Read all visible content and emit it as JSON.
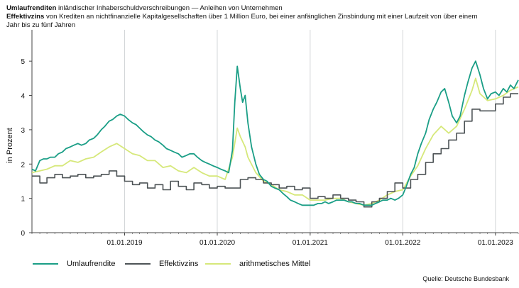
{
  "header": {
    "line1_bold": "Umlaufrenditen",
    "line1_rest": " inländischer Inhaberschuldverschreibungen — Anleihen von Unternehmen",
    "line2_bold": "Effektivzins",
    "line2_rest": " von Krediten an nichtfinanzielle Kapitalgesellschaften über 1 Million Euro, bei einer anfänglichen Zinsbindung mit einer Laufzeit von über einem",
    "line3": "Jahr bis zu fünf Jahren"
  },
  "source": "Quelle: Deutsche Bundesbank",
  "colors": {
    "umlauf": "#1a9e86",
    "effektiv": "#4d5356",
    "mittel": "#d6e87a",
    "grid": "#d3d6d8",
    "axis": "#444444"
  },
  "chart_data": {
    "type": "line",
    "ylabel": "in Prozent",
    "xlabel": "",
    "ylim": [
      0,
      5.5
    ],
    "xlim": [
      "2018-01-01",
      "2023-04-01"
    ],
    "yticks": [
      0,
      1,
      2,
      3,
      4,
      5
    ],
    "xticks": [
      "2019-01-01",
      "2020-01-01",
      "2021-01-01",
      "2022-01-01",
      "2023-01-01"
    ],
    "xtick_labels": [
      "01.01.2019",
      "01.01.2020",
      "01.01.2021",
      "01.01.2022",
      "01.01.2023"
    ],
    "grid": "vertical",
    "legend_position": "bottom-left",
    "series": [
      {
        "name": "Umlaufrendite",
        "key": "umlauf",
        "style": "line",
        "points": [
          [
            "2018-01-01",
            1.85
          ],
          [
            "2018-01-15",
            1.8
          ],
          [
            "2018-02-01",
            2.1
          ],
          [
            "2018-02-15",
            2.15
          ],
          [
            "2018-03-01",
            2.15
          ],
          [
            "2018-03-15",
            2.2
          ],
          [
            "2018-04-01",
            2.2
          ],
          [
            "2018-04-15",
            2.3
          ],
          [
            "2018-05-01",
            2.35
          ],
          [
            "2018-05-15",
            2.45
          ],
          [
            "2018-06-01",
            2.5
          ],
          [
            "2018-06-15",
            2.55
          ],
          [
            "2018-07-01",
            2.6
          ],
          [
            "2018-07-15",
            2.55
          ],
          [
            "2018-08-01",
            2.6
          ],
          [
            "2018-08-15",
            2.7
          ],
          [
            "2018-09-01",
            2.75
          ],
          [
            "2018-09-15",
            2.85
          ],
          [
            "2018-10-01",
            3.0
          ],
          [
            "2018-10-15",
            3.1
          ],
          [
            "2018-11-01",
            3.25
          ],
          [
            "2018-11-15",
            3.3
          ],
          [
            "2018-12-01",
            3.4
          ],
          [
            "2018-12-15",
            3.45
          ],
          [
            "2019-01-01",
            3.4
          ],
          [
            "2019-01-15",
            3.3
          ],
          [
            "2019-02-01",
            3.2
          ],
          [
            "2019-02-15",
            3.15
          ],
          [
            "2019-03-01",
            3.05
          ],
          [
            "2019-03-15",
            2.95
          ],
          [
            "2019-04-01",
            2.85
          ],
          [
            "2019-04-15",
            2.8
          ],
          [
            "2019-05-01",
            2.7
          ],
          [
            "2019-05-15",
            2.65
          ],
          [
            "2019-06-01",
            2.55
          ],
          [
            "2019-06-15",
            2.45
          ],
          [
            "2019-07-01",
            2.4
          ],
          [
            "2019-07-15",
            2.35
          ],
          [
            "2019-08-01",
            2.3
          ],
          [
            "2019-08-15",
            2.2
          ],
          [
            "2019-09-01",
            2.25
          ],
          [
            "2019-09-15",
            2.3
          ],
          [
            "2019-10-01",
            2.3
          ],
          [
            "2019-10-15",
            2.2
          ],
          [
            "2019-11-01",
            2.1
          ],
          [
            "2019-11-15",
            2.05
          ],
          [
            "2019-12-01",
            2.0
          ],
          [
            "2019-12-15",
            1.95
          ],
          [
            "2020-01-01",
            1.9
          ],
          [
            "2020-01-15",
            1.85
          ],
          [
            "2020-02-01",
            1.8
          ],
          [
            "2020-02-15",
            1.75
          ],
          [
            "2020-03-01",
            2.4
          ],
          [
            "2020-03-10",
            3.8
          ],
          [
            "2020-03-20",
            4.85
          ],
          [
            "2020-04-01",
            4.2
          ],
          [
            "2020-04-10",
            3.8
          ],
          [
            "2020-04-20",
            4.0
          ],
          [
            "2020-05-01",
            3.2
          ],
          [
            "2020-05-15",
            2.5
          ],
          [
            "2020-06-01",
            2.0
          ],
          [
            "2020-06-15",
            1.7
          ],
          [
            "2020-07-01",
            1.55
          ],
          [
            "2020-07-15",
            1.5
          ],
          [
            "2020-08-01",
            1.35
          ],
          [
            "2020-08-15",
            1.3
          ],
          [
            "2020-09-01",
            1.25
          ],
          [
            "2020-09-15",
            1.15
          ],
          [
            "2020-10-01",
            1.05
          ],
          [
            "2020-10-15",
            0.95
          ],
          [
            "2020-11-01",
            0.9
          ],
          [
            "2020-11-15",
            0.85
          ],
          [
            "2020-12-01",
            0.8
          ],
          [
            "2020-12-15",
            0.8
          ],
          [
            "2021-01-01",
            0.8
          ],
          [
            "2021-01-15",
            0.8
          ],
          [
            "2021-02-01",
            0.85
          ],
          [
            "2021-02-15",
            0.85
          ],
          [
            "2021-03-01",
            0.9
          ],
          [
            "2021-03-15",
            0.85
          ],
          [
            "2021-04-01",
            0.9
          ],
          [
            "2021-04-15",
            0.95
          ],
          [
            "2021-05-01",
            0.95
          ],
          [
            "2021-05-15",
            0.95
          ],
          [
            "2021-06-01",
            0.9
          ],
          [
            "2021-06-15",
            0.9
          ],
          [
            "2021-07-01",
            0.85
          ],
          [
            "2021-07-15",
            0.85
          ],
          [
            "2021-08-01",
            0.8
          ],
          [
            "2021-08-15",
            0.8
          ],
          [
            "2021-09-01",
            0.8
          ],
          [
            "2021-09-15",
            0.85
          ],
          [
            "2021-10-01",
            0.9
          ],
          [
            "2021-10-15",
            0.95
          ],
          [
            "2021-11-01",
            0.95
          ],
          [
            "2021-11-15",
            1.0
          ],
          [
            "2021-12-01",
            0.95
          ],
          [
            "2021-12-15",
            1.0
          ],
          [
            "2022-01-01",
            1.1
          ],
          [
            "2022-01-15",
            1.35
          ],
          [
            "2022-02-01",
            1.7
          ],
          [
            "2022-02-15",
            1.9
          ],
          [
            "2022-03-01",
            2.3
          ],
          [
            "2022-03-15",
            2.6
          ],
          [
            "2022-04-01",
            2.9
          ],
          [
            "2022-04-15",
            3.3
          ],
          [
            "2022-05-01",
            3.6
          ],
          [
            "2022-05-15",
            3.8
          ],
          [
            "2022-06-01",
            4.1
          ],
          [
            "2022-06-15",
            4.2
          ],
          [
            "2022-07-01",
            3.8
          ],
          [
            "2022-07-15",
            3.4
          ],
          [
            "2022-08-01",
            3.2
          ],
          [
            "2022-08-15",
            3.4
          ],
          [
            "2022-09-01",
            4.0
          ],
          [
            "2022-09-15",
            4.4
          ],
          [
            "2022-10-01",
            4.8
          ],
          [
            "2022-10-15",
            5.0
          ],
          [
            "2022-11-01",
            4.6
          ],
          [
            "2022-11-15",
            4.2
          ],
          [
            "2022-12-01",
            3.9
          ],
          [
            "2022-12-15",
            4.05
          ],
          [
            "2023-01-01",
            4.1
          ],
          [
            "2023-01-15",
            4.0
          ],
          [
            "2023-02-01",
            4.2
          ],
          [
            "2023-02-15",
            4.1
          ],
          [
            "2023-03-01",
            4.3
          ],
          [
            "2023-03-15",
            4.2
          ],
          [
            "2023-04-01",
            4.45
          ]
        ]
      },
      {
        "name": "Effektivzins",
        "key": "effektiv",
        "style": "step",
        "points": [
          [
            "2018-01-01",
            1.65
          ],
          [
            "2018-02-01",
            1.45
          ],
          [
            "2018-03-01",
            1.6
          ],
          [
            "2018-04-01",
            1.7
          ],
          [
            "2018-05-01",
            1.6
          ],
          [
            "2018-06-01",
            1.65
          ],
          [
            "2018-07-01",
            1.7
          ],
          [
            "2018-08-01",
            1.6
          ],
          [
            "2018-09-01",
            1.65
          ],
          [
            "2018-10-01",
            1.7
          ],
          [
            "2018-11-01",
            1.8
          ],
          [
            "2018-12-01",
            1.65
          ],
          [
            "2019-01-01",
            1.5
          ],
          [
            "2019-02-01",
            1.4
          ],
          [
            "2019-03-01",
            1.45
          ],
          [
            "2019-04-01",
            1.3
          ],
          [
            "2019-05-01",
            1.4
          ],
          [
            "2019-06-01",
            1.25
          ],
          [
            "2019-07-01",
            1.5
          ],
          [
            "2019-08-01",
            1.35
          ],
          [
            "2019-09-01",
            1.25
          ],
          [
            "2019-10-01",
            1.45
          ],
          [
            "2019-11-01",
            1.4
          ],
          [
            "2019-12-01",
            1.3
          ],
          [
            "2020-01-01",
            1.35
          ],
          [
            "2020-02-01",
            1.3
          ],
          [
            "2020-03-01",
            1.3
          ],
          [
            "2020-04-01",
            1.55
          ],
          [
            "2020-05-01",
            1.6
          ],
          [
            "2020-06-01",
            1.55
          ],
          [
            "2020-07-01",
            1.45
          ],
          [
            "2020-08-01",
            1.4
          ],
          [
            "2020-09-01",
            1.3
          ],
          [
            "2020-10-01",
            1.35
          ],
          [
            "2020-11-01",
            1.25
          ],
          [
            "2020-12-01",
            1.3
          ],
          [
            "2021-01-01",
            1.0
          ],
          [
            "2021-02-01",
            1.05
          ],
          [
            "2021-03-01",
            1.0
          ],
          [
            "2021-04-01",
            1.1
          ],
          [
            "2021-05-01",
            1.0
          ],
          [
            "2021-06-01",
            0.95
          ],
          [
            "2021-07-01",
            0.9
          ],
          [
            "2021-08-01",
            0.75
          ],
          [
            "2021-09-01",
            0.9
          ],
          [
            "2021-10-01",
            1.0
          ],
          [
            "2021-11-01",
            1.2
          ],
          [
            "2021-12-01",
            1.45
          ],
          [
            "2022-01-01",
            1.3
          ],
          [
            "2022-02-01",
            1.55
          ],
          [
            "2022-03-01",
            1.7
          ],
          [
            "2022-04-01",
            2.05
          ],
          [
            "2022-05-01",
            2.3
          ],
          [
            "2022-06-01",
            2.45
          ],
          [
            "2022-07-01",
            2.7
          ],
          [
            "2022-08-01",
            2.9
          ],
          [
            "2022-09-01",
            3.25
          ],
          [
            "2022-10-01",
            3.6
          ],
          [
            "2022-11-01",
            3.55
          ],
          [
            "2022-12-01",
            3.55
          ],
          [
            "2023-01-01",
            3.75
          ],
          [
            "2023-02-01",
            3.95
          ],
          [
            "2023-03-01",
            4.05
          ],
          [
            "2023-04-01",
            4.05
          ]
        ]
      },
      {
        "name": "arithmetisches Mittel",
        "key": "mittel",
        "style": "line",
        "points": [
          [
            "2018-01-01",
            1.75
          ],
          [
            "2018-02-01",
            1.8
          ],
          [
            "2018-03-01",
            1.85
          ],
          [
            "2018-04-01",
            1.95
          ],
          [
            "2018-05-01",
            1.95
          ],
          [
            "2018-06-01",
            2.1
          ],
          [
            "2018-07-01",
            2.05
          ],
          [
            "2018-08-01",
            2.15
          ],
          [
            "2018-09-01",
            2.2
          ],
          [
            "2018-10-01",
            2.35
          ],
          [
            "2018-11-01",
            2.5
          ],
          [
            "2018-12-01",
            2.6
          ],
          [
            "2019-01-01",
            2.45
          ],
          [
            "2019-02-01",
            2.3
          ],
          [
            "2019-03-01",
            2.25
          ],
          [
            "2019-04-01",
            2.1
          ],
          [
            "2019-05-01",
            2.1
          ],
          [
            "2019-06-01",
            1.9
          ],
          [
            "2019-07-01",
            1.95
          ],
          [
            "2019-08-01",
            1.8
          ],
          [
            "2019-09-01",
            1.75
          ],
          [
            "2019-10-01",
            1.9
          ],
          [
            "2019-11-01",
            1.75
          ],
          [
            "2019-12-01",
            1.65
          ],
          [
            "2020-01-01",
            1.65
          ],
          [
            "2020-02-01",
            1.55
          ],
          [
            "2020-03-01",
            2.2
          ],
          [
            "2020-03-20",
            3.05
          ],
          [
            "2020-04-01",
            2.8
          ],
          [
            "2020-04-20",
            2.5
          ],
          [
            "2020-05-01",
            2.2
          ],
          [
            "2020-06-01",
            1.75
          ],
          [
            "2020-07-01",
            1.5
          ],
          [
            "2020-08-01",
            1.4
          ],
          [
            "2020-09-01",
            1.25
          ],
          [
            "2020-10-01",
            1.2
          ],
          [
            "2020-11-01",
            1.1
          ],
          [
            "2020-12-01",
            1.1
          ],
          [
            "2021-01-01",
            0.95
          ],
          [
            "2021-02-01",
            0.95
          ],
          [
            "2021-03-01",
            0.95
          ],
          [
            "2021-04-01",
            1.0
          ],
          [
            "2021-05-01",
            1.0
          ],
          [
            "2021-06-01",
            0.9
          ],
          [
            "2021-07-01",
            0.85
          ],
          [
            "2021-08-01",
            0.8
          ],
          [
            "2021-09-01",
            0.85
          ],
          [
            "2021-10-01",
            0.95
          ],
          [
            "2021-11-01",
            1.1
          ],
          [
            "2021-12-01",
            1.2
          ],
          [
            "2022-01-01",
            1.25
          ],
          [
            "2022-02-01",
            1.65
          ],
          [
            "2022-03-01",
            1.95
          ],
          [
            "2022-04-01",
            2.45
          ],
          [
            "2022-05-01",
            2.85
          ],
          [
            "2022-06-01",
            3.1
          ],
          [
            "2022-07-01",
            2.9
          ],
          [
            "2022-08-01",
            3.1
          ],
          [
            "2022-09-01",
            3.6
          ],
          [
            "2022-10-01",
            4.15
          ],
          [
            "2022-10-15",
            4.5
          ],
          [
            "2022-11-01",
            4.05
          ],
          [
            "2022-12-01",
            3.85
          ],
          [
            "2023-01-01",
            3.9
          ],
          [
            "2023-02-01",
            4.0
          ],
          [
            "2023-03-01",
            4.15
          ],
          [
            "2023-04-01",
            4.25
          ]
        ]
      }
    ]
  }
}
